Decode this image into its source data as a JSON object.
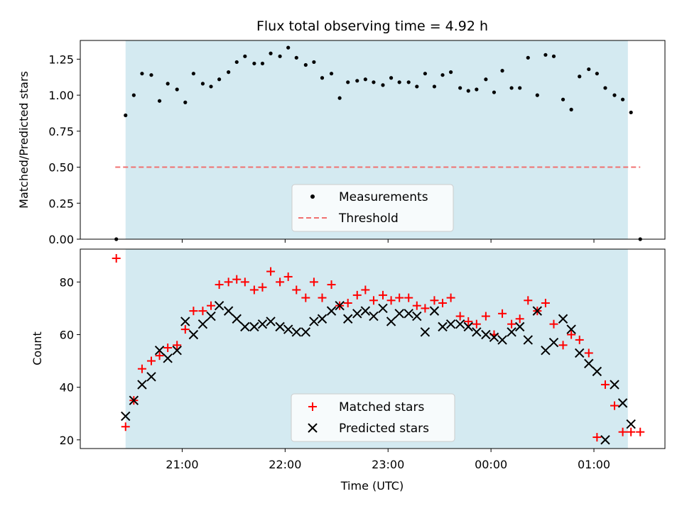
{
  "chart_data": [
    {
      "type": "scatter",
      "title": "Flux total observing time = 4.92 h",
      "xlabel": "",
      "ylabel": "Matched/Predicted stars",
      "yticks": [
        "0.00",
        "0.25",
        "0.50",
        "0.75",
        "1.00",
        "1.25"
      ],
      "ylim": [
        0,
        1.38
      ],
      "xlim_hours": [
        20.01,
        25.69
      ],
      "shaded_span_hours": [
        20.45,
        25.33
      ],
      "shade_color": "#d4eaf1",
      "threshold": {
        "value": 0.5,
        "x_hours": [
          20.35,
          25.45
        ],
        "color": "#f07070"
      },
      "legend": {
        "position": "lower center",
        "entries": [
          "Measurements",
          "Threshold"
        ]
      },
      "series": [
        {
          "name": "Measurements",
          "marker": "dot",
          "color": "#000000",
          "x_hours": [
            20.36,
            20.45,
            20.53,
            20.61,
            20.7,
            20.78,
            20.86,
            20.95,
            21.03,
            21.11,
            21.2,
            21.28,
            21.36,
            21.45,
            21.53,
            21.61,
            21.7,
            21.78,
            21.86,
            21.95,
            22.03,
            22.11,
            22.2,
            22.28,
            22.36,
            22.45,
            22.53,
            22.61,
            22.7,
            22.78,
            22.86,
            22.95,
            23.03,
            23.11,
            23.2,
            23.28,
            23.36,
            23.45,
            23.53,
            23.61,
            23.7,
            23.78,
            23.86,
            23.95,
            24.03,
            24.11,
            24.2,
            24.28,
            24.36,
            24.45,
            24.53,
            24.61,
            24.7,
            24.78,
            24.86,
            24.95,
            25.03,
            25.11,
            25.2,
            25.28,
            25.36,
            25.45
          ],
          "values": [
            0.0,
            0.86,
            1.0,
            1.15,
            1.14,
            0.96,
            1.08,
            1.04,
            0.95,
            1.15,
            1.08,
            1.06,
            1.11,
            1.16,
            1.23,
            1.27,
            1.22,
            1.22,
            1.29,
            1.27,
            1.33,
            1.26,
            1.21,
            1.23,
            1.12,
            1.15,
            0.98,
            1.09,
            1.1,
            1.11,
            1.09,
            1.07,
            1.12,
            1.09,
            1.09,
            1.06,
            1.15,
            1.06,
            1.14,
            1.16,
            1.05,
            1.03,
            1.04,
            1.11,
            1.02,
            1.17,
            1.05,
            1.05,
            1.26,
            1.0,
            1.28,
            1.27,
            0.97,
            0.9,
            1.13,
            1.18,
            1.15,
            1.05,
            1.0,
            0.97,
            0.88,
            0.0
          ]
        }
      ]
    },
    {
      "type": "scatter",
      "title": "",
      "xlabel": "Time (UTC)",
      "ylabel": "Count",
      "yticks": [
        "20",
        "40",
        "60",
        "80"
      ],
      "ylim": [
        16.7,
        92.5
      ],
      "xticks": [
        "21:00",
        "22:00",
        "23:00",
        "00:00",
        "01:00"
      ],
      "xtick_hours": [
        21,
        22,
        23,
        24,
        25
      ],
      "xlim_hours": [
        20.01,
        25.69
      ],
      "shaded_span_hours": [
        20.45,
        25.33
      ],
      "legend": {
        "position": "lower center",
        "entries": [
          "Matched stars",
          "Predicted stars"
        ]
      },
      "series": [
        {
          "name": "Matched stars",
          "marker": "plus",
          "color": "#ff0000",
          "x_hours": [
            20.36,
            20.45,
            20.53,
            20.61,
            20.7,
            20.78,
            20.86,
            20.95,
            21.03,
            21.11,
            21.2,
            21.28,
            21.36,
            21.45,
            21.53,
            21.61,
            21.7,
            21.78,
            21.86,
            21.95,
            22.03,
            22.11,
            22.2,
            22.28,
            22.36,
            22.45,
            22.53,
            22.61,
            22.7,
            22.78,
            22.86,
            22.95,
            23.03,
            23.11,
            23.2,
            23.28,
            23.36,
            23.45,
            23.53,
            23.61,
            23.7,
            23.78,
            23.86,
            23.95,
            24.03,
            24.11,
            24.2,
            24.28,
            24.36,
            24.45,
            24.53,
            24.61,
            24.7,
            24.78,
            24.86,
            24.95,
            25.03,
            25.11,
            25.2,
            25.28,
            25.36,
            25.45
          ],
          "values": [
            89,
            25,
            35,
            47,
            50,
            52,
            55,
            56,
            62,
            69,
            69,
            71,
            79,
            80,
            81,
            80,
            77,
            78,
            84,
            80,
            82,
            77,
            74,
            80,
            74,
            79,
            71,
            72,
            75,
            77,
            73,
            75,
            73,
            74,
            74,
            71,
            70,
            73,
            72,
            74,
            67,
            65,
            64,
            67,
            60,
            68,
            64,
            66,
            73,
            69,
            72,
            64,
            56,
            60,
            58,
            53,
            21,
            41,
            33,
            23,
            23,
            23
          ],
          "x_hours_note": ""
        },
        {
          "name": "Predicted stars",
          "marker": "x",
          "color": "#000000",
          "x_hours": [
            20.45,
            20.53,
            20.61,
            20.7,
            20.78,
            20.86,
            20.95,
            21.03,
            21.11,
            21.2,
            21.28,
            21.36,
            21.45,
            21.53,
            21.61,
            21.7,
            21.78,
            21.86,
            21.95,
            22.03,
            22.11,
            22.2,
            22.28,
            22.36,
            22.45,
            22.53,
            22.61,
            22.7,
            22.78,
            22.86,
            22.95,
            23.03,
            23.11,
            23.2,
            23.28,
            23.36,
            23.45,
            23.53,
            23.61,
            23.7,
            23.78,
            23.86,
            23.95,
            24.03,
            24.11,
            24.2,
            24.28,
            24.36,
            24.45,
            24.53,
            24.61,
            24.7,
            24.78,
            24.86,
            24.95,
            25.03,
            25.11,
            25.2,
            25.28,
            25.36
          ],
          "values": [
            29,
            35,
            41,
            44,
            54,
            51,
            54,
            65,
            60,
            64,
            67,
            71,
            69,
            66,
            63,
            63,
            64,
            65,
            63,
            62,
            61,
            61,
            65,
            66,
            69,
            71,
            66,
            68,
            69,
            67,
            70,
            65,
            68,
            68,
            67,
            61,
            69,
            63,
            64,
            64,
            63,
            61,
            60,
            59,
            58,
            61,
            63,
            58,
            69,
            54,
            57,
            66,
            62,
            53,
            49,
            46,
            20,
            41,
            34,
            26
          ]
        }
      ]
    }
  ]
}
